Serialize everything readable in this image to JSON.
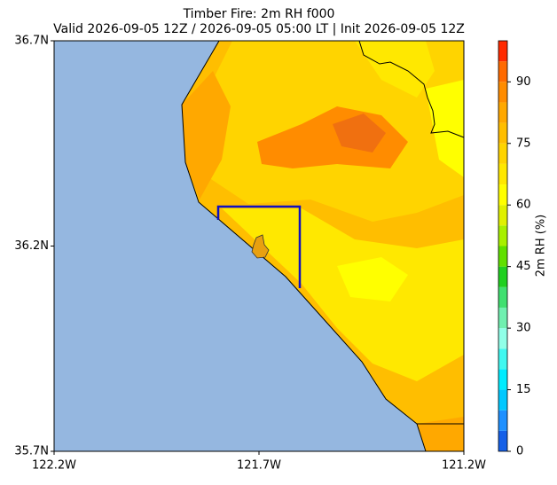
{
  "chart_data": {
    "type": "map",
    "title": "Timber Fire: 2m RH f000",
    "subtitle": "Valid 2026-09-05 12Z / 2026-09-05 05:00 LT | Init 2026-09-05 12Z",
    "xlim": [
      -122.2,
      -121.2
    ],
    "xticks": [
      {
        "value": -122.2,
        "label": "122.2W"
      },
      {
        "value": -121.7,
        "label": "121.7W"
      },
      {
        "value": -121.2,
        "label": "121.2W"
      }
    ],
    "ylim": [
      35.7,
      36.7
    ],
    "yticks": [
      {
        "value": 35.7,
        "label": "35.7N"
      },
      {
        "value": 36.2,
        "label": "36.2N"
      },
      {
        "value": 36.7,
        "label": "36.7N"
      }
    ],
    "colorbar": {
      "label": "2m RH (%)",
      "lim": [
        0,
        100
      ],
      "ticks": [
        0,
        15,
        30,
        45,
        60,
        75,
        90
      ],
      "levels": [
        0,
        5,
        10,
        15,
        20,
        25,
        30,
        35,
        40,
        45,
        50,
        55,
        60,
        65,
        70,
        75,
        80,
        85,
        90,
        95,
        100
      ],
      "colors": [
        "#1560e8",
        "#1e90ff",
        "#00c8ff",
        "#00ecff",
        "#40f8f0",
        "#90ffe8",
        "#70f0b0",
        "#40e070",
        "#20d020",
        "#60e000",
        "#a8f000",
        "#e0f000",
        "#ffff00",
        "#ffe800",
        "#ffd400",
        "#ffbe00",
        "#ffa800",
        "#ff8c00",
        "#ff6a00",
        "#ff2a00"
      ]
    }
  }
}
